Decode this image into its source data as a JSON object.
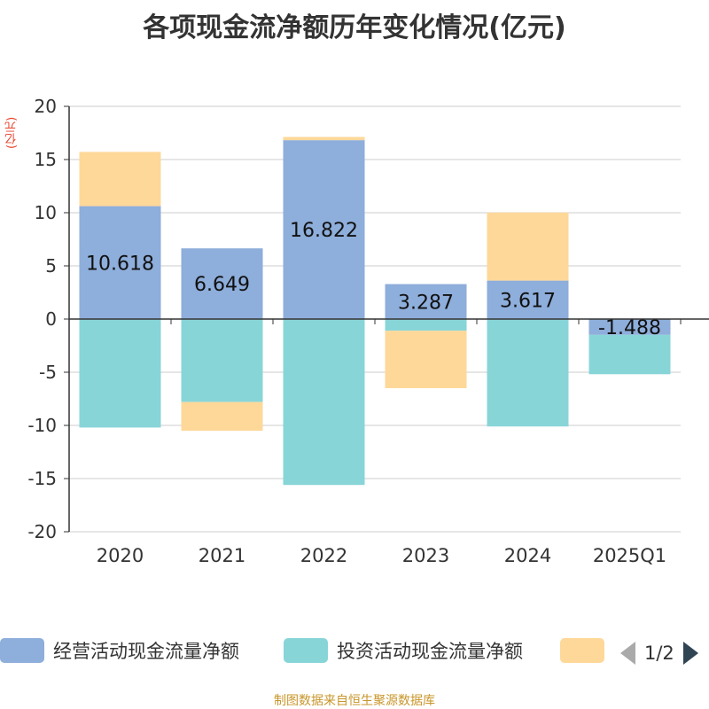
{
  "chart_data": {
    "type": "bar",
    "stacked": true,
    "title": "各项现金流净额历年变化情况(亿元)",
    "ylabel": "(亿元)",
    "ylim": [
      -20,
      20
    ],
    "yticks": [
      20,
      15,
      10,
      5,
      0,
      -5,
      -10,
      -15,
      -20
    ],
    "categories": [
      "2020",
      "2021",
      "2022",
      "2023",
      "2024",
      "2025Q1"
    ],
    "series": [
      {
        "name": "经营活动现金流量净额",
        "color": "#8eaedb",
        "labels": [
          "10.618",
          "6.649",
          "16.822",
          "3.287",
          "3.617",
          "-1.488"
        ],
        "values": [
          10.618,
          6.649,
          16.822,
          3.287,
          3.617,
          -1.488
        ]
      },
      {
        "name": "投资活动现金流量净额",
        "color": "#88d5d8",
        "values": [
          -10.2,
          -7.8,
          -15.6,
          -1.1,
          -10.1,
          -3.7
        ]
      },
      {
        "name": "",
        "color": "#fed899",
        "values": [
          5.1,
          -2.7,
          0.3,
          -5.4,
          6.4,
          0
        ]
      }
    ],
    "legend": {
      "position": "bottom",
      "page": "1/2"
    }
  },
  "footer": "制图数据来自恒生聚源数据库"
}
